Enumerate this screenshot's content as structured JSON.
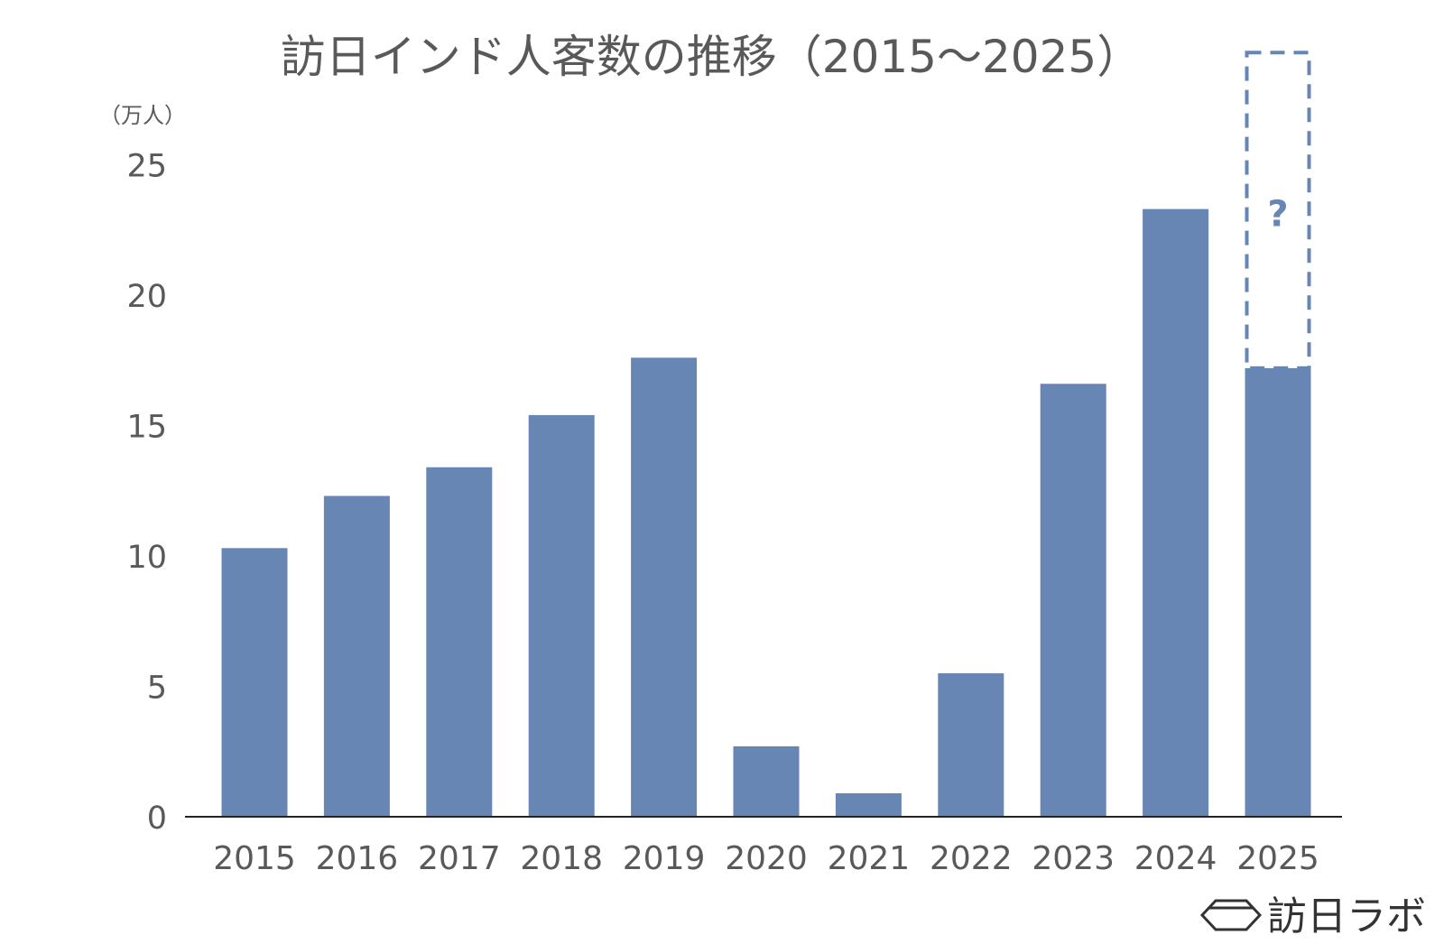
{
  "colors": {
    "bar": "#6886b3",
    "axis": "#222222",
    "text": "#595959",
    "projection": "#6886b3",
    "brand": "#333333"
  },
  "brand": {
    "text": "訪日ラボ",
    "icon": "hexagon-logo-icon"
  },
  "chart_data": {
    "type": "bar",
    "title": "訪日インド人客数の推移（2015〜2025）",
    "unit_label": "（万人）",
    "xlabel": "",
    "ylabel": "",
    "ylim": [
      0,
      25
    ],
    "y_ticks": [
      0,
      5,
      10,
      15,
      20,
      25
    ],
    "grid": false,
    "legend": "none",
    "categories": [
      "2015",
      "2016",
      "2017",
      "2018",
      "2019",
      "2020",
      "2021",
      "2022",
      "2023",
      "2024",
      "2025"
    ],
    "values": [
      10.3,
      12.3,
      13.4,
      15.4,
      17.6,
      2.7,
      0.9,
      5.5,
      16.6,
      23.3,
      17.2
    ],
    "projection": {
      "category": "2025",
      "from": 17.2,
      "to": 29.3,
      "label": "?"
    }
  }
}
